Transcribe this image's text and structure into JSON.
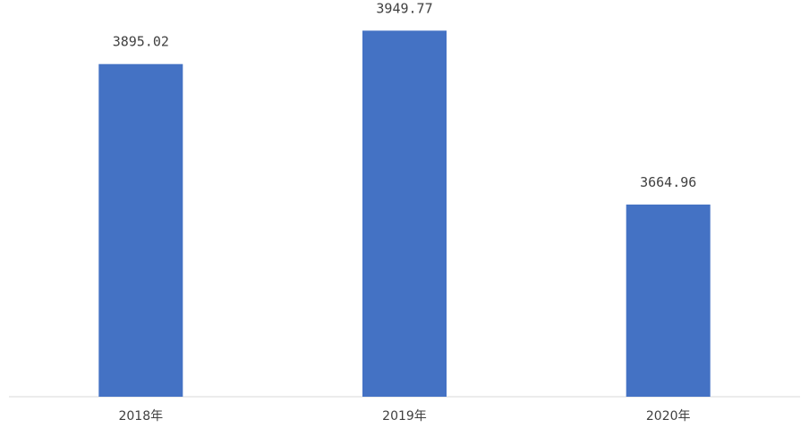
{
  "chart_data": {
    "type": "bar",
    "categories": [
      "2018年",
      "2019年",
      "2020年"
    ],
    "values": [
      3895.02,
      3949.77,
      3664.96
    ],
    "data_labels": [
      "3895.02",
      "3949.77",
      "3664.96"
    ],
    "title": "",
    "xlabel": "",
    "ylabel": "",
    "ylim": [
      3350,
      4000
    ],
    "grid": false,
    "legend": "none",
    "bar_color": "#4472C4",
    "axis_color": "#D9D9D9",
    "text_color": "#404040"
  }
}
